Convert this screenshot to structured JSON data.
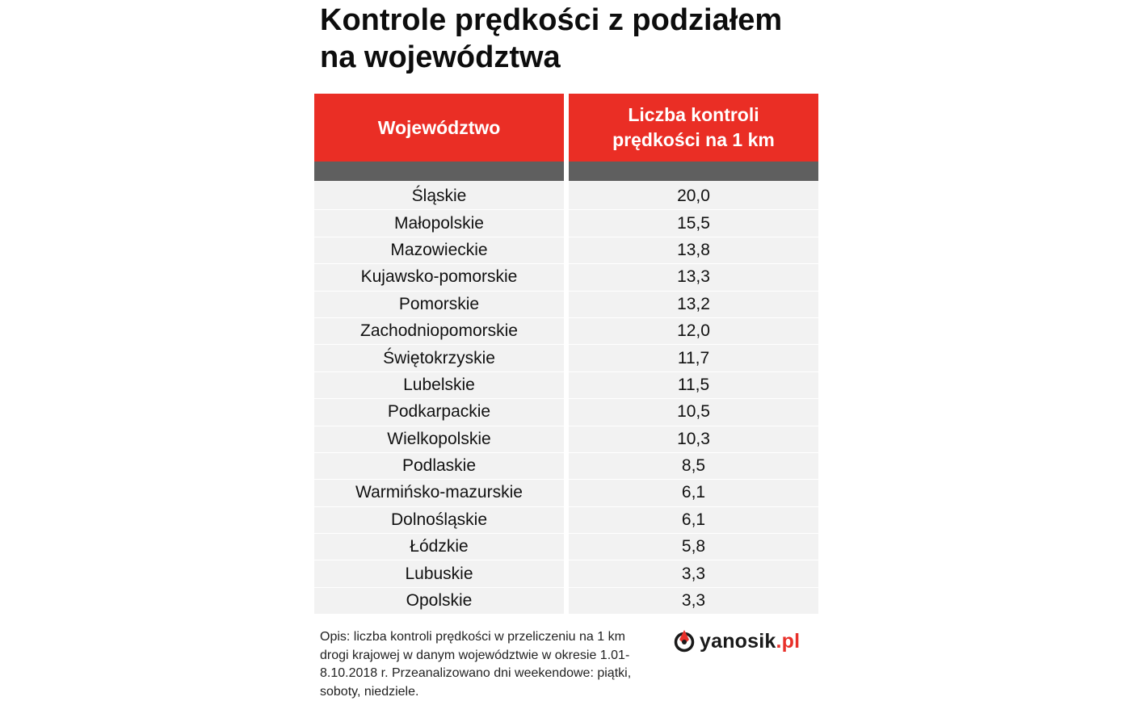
{
  "title_lines": [
    "Kontrole prędkości z podziałem",
    "na województwa"
  ],
  "colors": {
    "header_red": "#ea2e25",
    "header_grey": "#5f5f5f",
    "row_bg": "#f2f2f2",
    "brand_red": "#e8302a"
  },
  "chart_data": {
    "type": "table",
    "columns": [
      {
        "lines": [
          "Województwo"
        ]
      },
      {
        "lines": [
          "Liczba kontroli",
          "prędkości na 1 km"
        ]
      }
    ],
    "rows": [
      [
        "Śląskie",
        "20,0"
      ],
      [
        "Małopolskie",
        "15,5"
      ],
      [
        "Mazowieckie",
        "13,8"
      ],
      [
        "Kujawsko-pomorskie",
        "13,3"
      ],
      [
        "Pomorskie",
        "13,2"
      ],
      [
        "Zachodniopomorskie",
        "12,0"
      ],
      [
        "Świętokrzyskie",
        "11,7"
      ],
      [
        "Lubelskie",
        "11,5"
      ],
      [
        "Podkarpackie",
        "10,5"
      ],
      [
        "Wielkopolskie",
        "10,3"
      ],
      [
        "Podlaskie",
        "8,5"
      ],
      [
        "Warmińsko-mazurskie",
        "6,1"
      ],
      [
        "Dolnośląskie",
        "6,1"
      ],
      [
        "Łódzkie",
        "5,8"
      ],
      [
        "Lubuskie",
        "3,3"
      ],
      [
        "Opolskie",
        "3,3"
      ]
    ]
  },
  "description": "Opis: liczba kontroli prędkości w przeliczeniu na 1 km drogi krajowej w danym województwie w okresie 1.01-8.10.2018 r. Przeanalizowano dni weekendowe: piątki, soboty, niedziele.",
  "logo": {
    "icon": "yanosik-logo-icon",
    "name": "yanosik",
    "domain": ".pl"
  }
}
